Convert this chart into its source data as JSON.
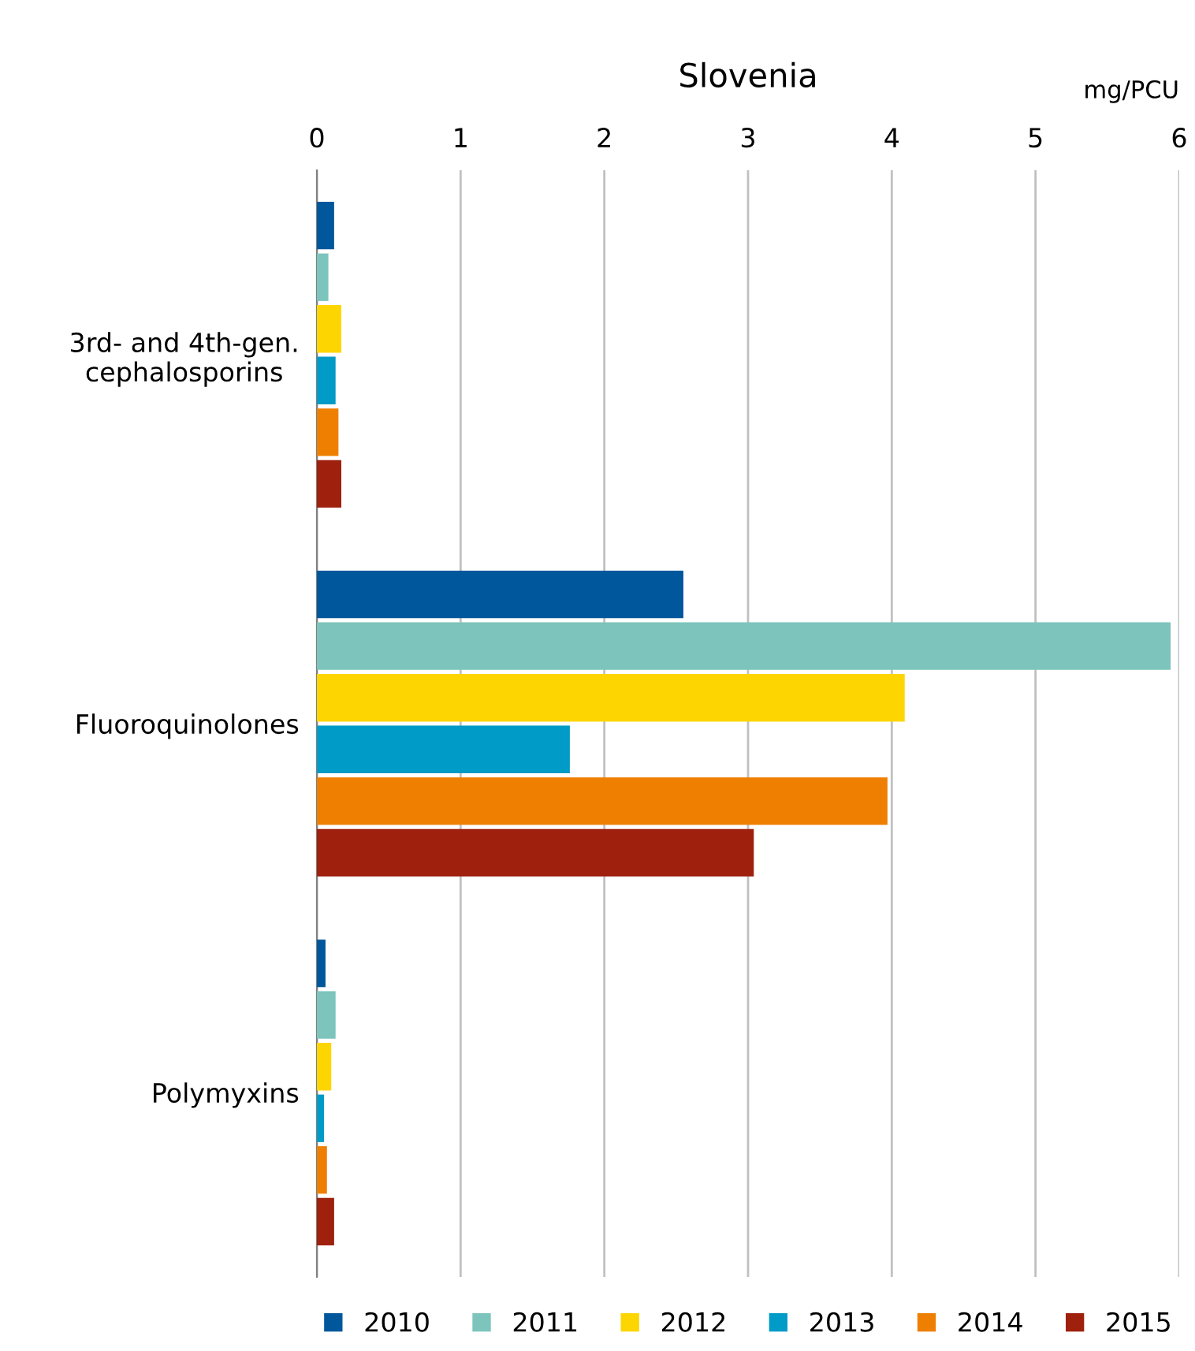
{
  "chart_data": {
    "type": "bar",
    "orientation": "horizontal",
    "title": "Slovenia",
    "xlabel": "mg/PCU",
    "categories": [
      "3rd- and 4th-gen.\ncephalosporins",
      "Fluoroquinolones",
      "Polymyxins"
    ],
    "series": [
      {
        "name": "2010",
        "color": "#00579b",
        "values": [
          0.12,
          2.55,
          0.06
        ]
      },
      {
        "name": "2011",
        "color": "#7cc4bc",
        "values": [
          0.08,
          5.94,
          0.13
        ]
      },
      {
        "name": "2012",
        "color": "#fdd500",
        "values": [
          0.17,
          4.09,
          0.1
        ]
      },
      {
        "name": "2013",
        "color": "#009bc6",
        "values": [
          0.13,
          1.76,
          0.05
        ]
      },
      {
        "name": "2014",
        "color": "#ee7f00",
        "values": [
          0.15,
          3.97,
          0.07
        ]
      },
      {
        "name": "2015",
        "color": "#9e200d",
        "values": [
          0.17,
          3.04,
          0.12
        ]
      }
    ],
    "xlim": [
      0,
      6
    ],
    "xticks": [
      0,
      1,
      2,
      3,
      4,
      5,
      6
    ],
    "grid": "x",
    "legend": "bottom"
  }
}
